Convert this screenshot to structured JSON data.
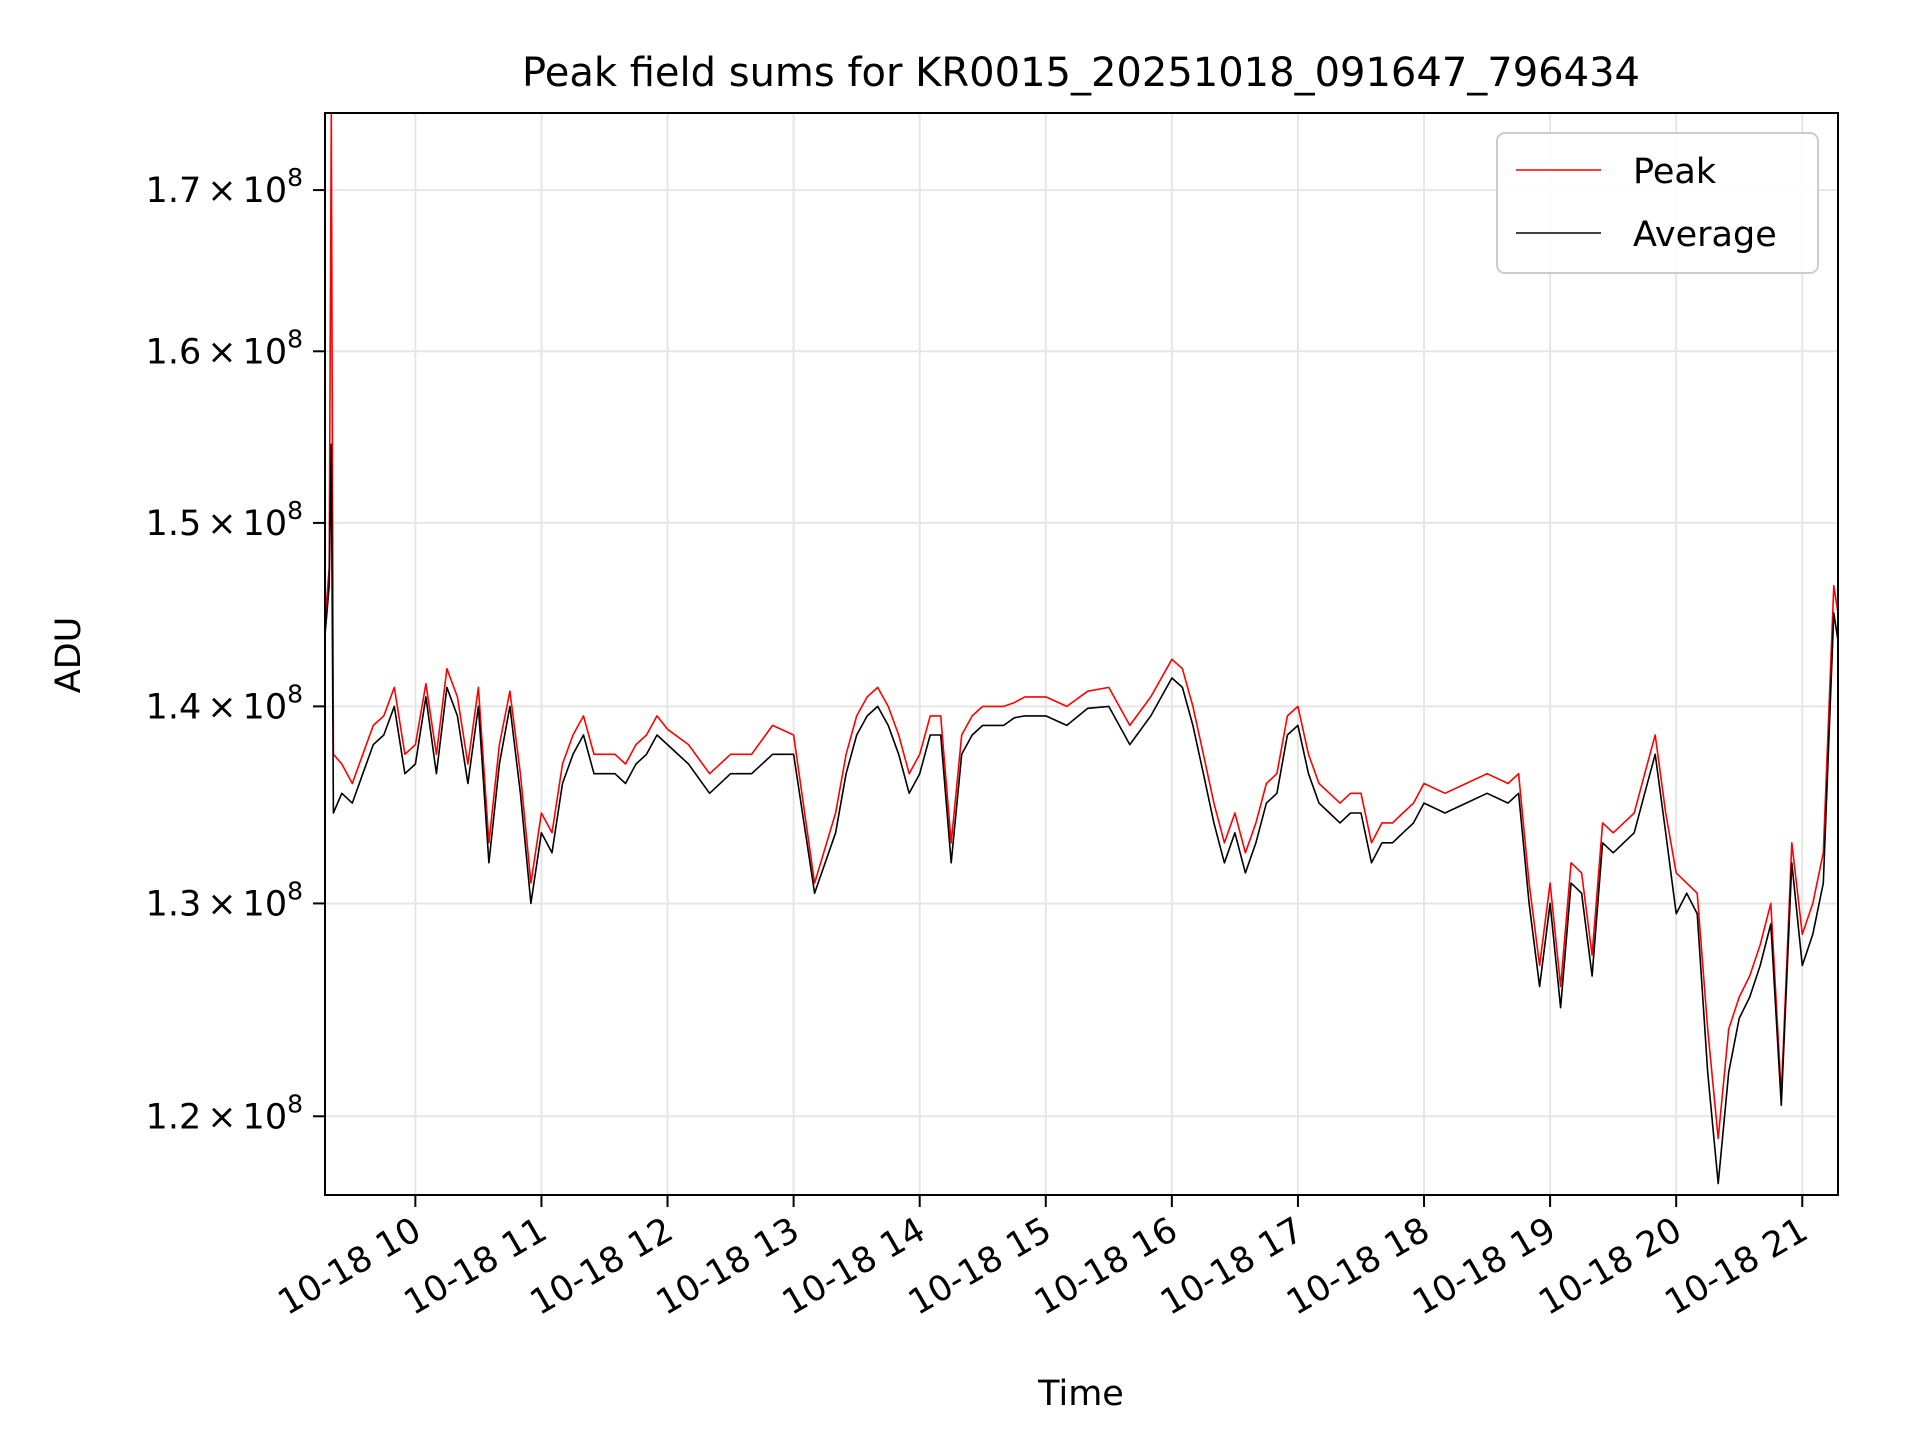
{
  "chart_data": {
    "type": "line",
    "title": "Peak field sums for KR0015_20251018_091647_796434",
    "xlabel": "Time",
    "ylabel": "ADU",
    "x_range": [
      "2025-10-18 09:17",
      "2025-10-18 21:17"
    ],
    "y_range": [
      116500000,
      175000000
    ],
    "y_scale": "log",
    "grid": true,
    "legend_position": "upper-right",
    "x_ticks": [
      "10-18 10",
      "10-18 11",
      "10-18 12",
      "10-18 13",
      "10-18 14",
      "10-18 15",
      "10-18 16",
      "10-18 17",
      "10-18 18",
      "10-18 19",
      "10-18 20",
      "10-18 21"
    ],
    "y_ticks": [
      {
        "value": 120000000,
        "mantissa": "1.2",
        "times": "×",
        "base": "10",
        "exp": "8"
      },
      {
        "value": 130000000,
        "mantissa": "1.3",
        "times": "×",
        "base": "10",
        "exp": "8"
      },
      {
        "value": 140000000,
        "mantissa": "1.4",
        "times": "×",
        "base": "10",
        "exp": "8"
      },
      {
        "value": 150000000,
        "mantissa": "1.5",
        "times": "×",
        "base": "10",
        "exp": "8"
      },
      {
        "value": 160000000,
        "mantissa": "1.6",
        "times": "×",
        "base": "10",
        "exp": "8"
      },
      {
        "value": 170000000,
        "mantissa": "1.7",
        "times": "×",
        "base": "10",
        "exp": "8"
      }
    ],
    "x": [
      "09:17",
      "09:19",
      "09:20",
      "09:21",
      "09:25",
      "09:30",
      "09:35",
      "09:40",
      "09:45",
      "09:50",
      "09:55",
      "10:00",
      "10:05",
      "10:10",
      "10:15",
      "10:20",
      "10:25",
      "10:30",
      "10:35",
      "10:40",
      "10:45",
      "10:50",
      "10:55",
      "11:00",
      "11:05",
      "11:10",
      "11:15",
      "11:20",
      "11:25",
      "11:30",
      "11:35",
      "11:40",
      "11:45",
      "11:50",
      "11:55",
      "12:00",
      "12:10",
      "12:20",
      "12:30",
      "12:40",
      "12:50",
      "13:00",
      "13:10",
      "13:20",
      "13:25",
      "13:30",
      "13:35",
      "13:40",
      "13:45",
      "13:50",
      "13:55",
      "14:00",
      "14:05",
      "14:10",
      "14:15",
      "14:20",
      "14:25",
      "14:30",
      "14:35",
      "14:40",
      "14:45",
      "14:50",
      "15:00",
      "15:10",
      "15:20",
      "15:30",
      "15:40",
      "15:50",
      "16:00",
      "16:05",
      "16:10",
      "16:15",
      "16:20",
      "16:25",
      "16:30",
      "16:35",
      "16:40",
      "16:45",
      "16:50",
      "16:55",
      "17:00",
      "17:05",
      "17:10",
      "17:15",
      "17:20",
      "17:25",
      "17:30",
      "17:35",
      "17:40",
      "17:45",
      "17:50",
      "17:55",
      "18:00",
      "18:10",
      "18:20",
      "18:30",
      "18:40",
      "18:45",
      "18:50",
      "18:55",
      "19:00",
      "19:05",
      "19:10",
      "19:15",
      "19:20",
      "19:25",
      "19:30",
      "19:35",
      "19:40",
      "19:45",
      "19:50",
      "19:55",
      "20:00",
      "20:05",
      "20:10",
      "20:15",
      "20:20",
      "20:25",
      "20:30",
      "20:35",
      "20:40",
      "20:45",
      "20:50",
      "20:55",
      "21:00",
      "21:05",
      "21:10",
      "21:15",
      "21:17"
    ],
    "series": [
      {
        "name": "Peak",
        "color": "#ff0000",
        "values": [
          144500000,
          147500000,
          175000000,
          137500000,
          137000000,
          136000000,
          137500000,
          139000000,
          139500000,
          141000000,
          137500000,
          138000000,
          141200000,
          137500000,
          142000000,
          140500000,
          137000000,
          141000000,
          133000000,
          138000000,
          140800000,
          136500000,
          131000000,
          134500000,
          133500000,
          137000000,
          138500000,
          139500000,
          137500000,
          137500000,
          137500000,
          137000000,
          138000000,
          138500000,
          139500000,
          138800000,
          138000000,
          136500000,
          137500000,
          137500000,
          139000000,
          138500000,
          131000000,
          134500000,
          137500000,
          139500000,
          140500000,
          141000000,
          140000000,
          138500000,
          136500000,
          137500000,
          139500000,
          139500000,
          133000000,
          138500000,
          139500000,
          140000000,
          140000000,
          140000000,
          140200000,
          140500000,
          140500000,
          140000000,
          140800000,
          141000000,
          139000000,
          140500000,
          142500000,
          142000000,
          140000000,
          137500000,
          135000000,
          133000000,
          134500000,
          132500000,
          134000000,
          136000000,
          136500000,
          139500000,
          140000000,
          137500000,
          136000000,
          135500000,
          135000000,
          135500000,
          135500000,
          133000000,
          134000000,
          134000000,
          134500000,
          135000000,
          136000000,
          135500000,
          136000000,
          136500000,
          136000000,
          136500000,
          131000000,
          127000000,
          131000000,
          126000000,
          132000000,
          131500000,
          127500000,
          134000000,
          133500000,
          134000000,
          134500000,
          136500000,
          138500000,
          134500000,
          131500000,
          131000000,
          130500000,
          124000000,
          119000000,
          124000000,
          125500000,
          126500000,
          128000000,
          130000000,
          121000000,
          133000000,
          128500000,
          130000000,
          132500000,
          146500000,
          145000000
        ],
        "_unused": null
      },
      {
        "name": "Average",
        "color": "#000000",
        "values": [
          143800000,
          146500000,
          154500000,
          134500000,
          135500000,
          135000000,
          136500000,
          138000000,
          138500000,
          140000000,
          136500000,
          137000000,
          140500000,
          136500000,
          141000000,
          139500000,
          136000000,
          140000000,
          132000000,
          137000000,
          140000000,
          135500000,
          130000000,
          133500000,
          132500000,
          136000000,
          137500000,
          138500000,
          136500000,
          136500000,
          136500000,
          136000000,
          137000000,
          137500000,
          138500000,
          138000000,
          137000000,
          135500000,
          136500000,
          136500000,
          137500000,
          137500000,
          130500000,
          133500000,
          136500000,
          138500000,
          139500000,
          140000000,
          139000000,
          137500000,
          135500000,
          136500000,
          138500000,
          138500000,
          132000000,
          137500000,
          138500000,
          139000000,
          139000000,
          139000000,
          139400000,
          139500000,
          139500000,
          139000000,
          139900000,
          140000000,
          138000000,
          139500000,
          141500000,
          141000000,
          139000000,
          136500000,
          134000000,
          132000000,
          133500000,
          131500000,
          133000000,
          135000000,
          135500000,
          138500000,
          139000000,
          136500000,
          135000000,
          134500000,
          134000000,
          134500000,
          134500000,
          132000000,
          133000000,
          133000000,
          133500000,
          134000000,
          135000000,
          134500000,
          135000000,
          135500000,
          135000000,
          135500000,
          130000000,
          126000000,
          130000000,
          125000000,
          131000000,
          130500000,
          126500000,
          133000000,
          132500000,
          133000000,
          133500000,
          135500000,
          137500000,
          133500000,
          129500000,
          130500000,
          129500000,
          122000000,
          117000000,
          122000000,
          124500000,
          125500000,
          127000000,
          129000000,
          120500000,
          132000000,
          127000000,
          128500000,
          131000000,
          145000000,
          143500000
        ]
      }
    ]
  }
}
